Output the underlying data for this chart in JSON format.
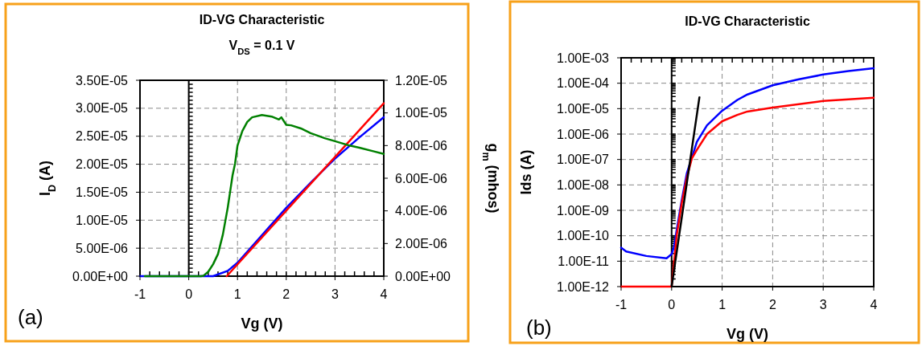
{
  "chart_data": [
    {
      "type": "line",
      "title": "ID-VG Characteristic",
      "subtitle": "V$_{DS}$ = 0.1 V",
      "xlabel": "Vg (V)",
      "ylabel": "I$_{D}$ (A)",
      "y2label": "g$_{m}$ (mhos)",
      "annotations": [
        "(a)"
      ],
      "grid": true,
      "xlim": [
        -1,
        4
      ],
      "xticks": [
        -1,
        0,
        1,
        2,
        3,
        4
      ],
      "ylim": [
        0,
        3.5e-05
      ],
      "yticks": [
        {
          "value": 0,
          "label": "0.00E+00"
        },
        {
          "value": 5e-06,
          "label": "5.00E-06"
        },
        {
          "value": 1e-05,
          "label": "1.00E-05"
        },
        {
          "value": 1.5e-05,
          "label": "1.50E-05"
        },
        {
          "value": 2e-05,
          "label": "2.00E-05"
        },
        {
          "value": 2.5e-05,
          "label": "2.50E-05"
        },
        {
          "value": 3e-05,
          "label": "3.00E-05"
        },
        {
          "value": 3.5e-05,
          "label": "3.50E-05"
        }
      ],
      "y2lim": [
        0,
        1.2e-05
      ],
      "y2ticks": [
        {
          "value": 0,
          "label": "0.00E+00"
        },
        {
          "value": 2e-06,
          "label": "2.00E-06"
        },
        {
          "value": 4e-06,
          "label": "4.00E-06"
        },
        {
          "value": 6e-06,
          "label": "6.00E-06"
        },
        {
          "value": 8e-06,
          "label": "8.00E-06"
        },
        {
          "value": 1e-05,
          "label": "1.00E-05"
        },
        {
          "value": 1.2e-05,
          "label": "1.20E-05"
        }
      ],
      "series": [
        {
          "color": "#0000ff",
          "x": [
            -1,
            0,
            0.5,
            0.8,
            1,
            1.5,
            2,
            2.5,
            3,
            3.5,
            4
          ],
          "values": [
            0,
            0,
            0,
            9.5e-07,
            2.4e-06,
            7.3e-06,
            1.22e-05,
            1.67e-05,
            2.1e-05,
            2.48e-05,
            2.84e-05
          ]
        },
        {
          "color": "#ff0000",
          "x": [
            0.78,
            4
          ],
          "values": [
            0,
            3.09e-05
          ]
        },
        {
          "color": "#008000",
          "axis": "y2",
          "x": [
            -0.9,
            0,
            0.25,
            0.3,
            0.4,
            0.5,
            0.6,
            0.7,
            0.8,
            0.9,
            0.95,
            1,
            1.1,
            1.2,
            1.3,
            1.5,
            1.7,
            1.85,
            1.9,
            2,
            2.1,
            2.3,
            2.5,
            2.8,
            3,
            3.3,
            3.5,
            3.8,
            4
          ],
          "values": [
            0,
            0,
            0,
            2e-08,
            2.7e-07,
            7.3e-07,
            1.36e-06,
            2.55e-06,
            4.2e-06,
            6.2e-06,
            6.9e-06,
            8e-06,
            8.9e-06,
            9.45e-06,
            9.73e-06,
            9.87e-06,
            9.78e-06,
            9.6e-06,
            9.73e-06,
            9.27e-06,
            9.24e-06,
            9.05e-06,
            8.76e-06,
            8.44e-06,
            8.27e-06,
            8e-06,
            7.87e-06,
            7.64e-06,
            7.49e-06
          ]
        }
      ]
    },
    {
      "type": "line",
      "title": "ID-VG Characteristic",
      "xlabel": "Vg (V)",
      "ylabel": "Ids (A)",
      "annotations": [
        "(b)"
      ],
      "grid": true,
      "log": "y",
      "xlim": [
        -1,
        4
      ],
      "xticks": [
        -1,
        0,
        1,
        2,
        3,
        4
      ],
      "ylim": [
        1e-12,
        0.001
      ],
      "yticks": [
        {
          "value": 1e-12,
          "label": "1.00E-12"
        },
        {
          "value": 1e-11,
          "label": "1.00E-11"
        },
        {
          "value": 1e-10,
          "label": "1.00E-10"
        },
        {
          "value": 1e-09,
          "label": "1.00E-09"
        },
        {
          "value": 1e-08,
          "label": "1.00E-08"
        },
        {
          "value": 1e-07,
          "label": "1.00E-07"
        },
        {
          "value": 1e-06,
          "label": "1.00E-06"
        },
        {
          "value": 1e-05,
          "label": "1.00E-05"
        },
        {
          "value": 0.0001,
          "label": "1.00E-04"
        },
        {
          "value": 0.001,
          "label": "1.00E-03"
        }
      ],
      "series": [
        {
          "color": "#0000ff",
          "x": [
            -1,
            -0.9,
            -0.5,
            -0.1,
            0,
            0.05,
            0.1,
            0.2,
            0.3,
            0.5,
            0.7,
            1,
            1.3,
            1.5,
            2,
            2.5,
            3,
            3.5,
            4
          ],
          "values": [
            3.4e-11,
            2.4e-11,
            1.6e-11,
            1.3e-11,
            1.9e-11,
            3.9e-11,
            1.7e-10,
            2.5e-09,
            2.8e-08,
            5e-07,
            2.2e-06,
            8.3e-06,
            2.2e-05,
            3.6e-05,
            8.3e-05,
            0.00014,
            0.00022,
            0.0003,
            0.00039
          ]
        },
        {
          "color": "#ff0000",
          "x": [
            -1,
            0,
            0.1,
            0.2,
            0.3,
            0.4,
            0.5,
            0.7,
            1,
            1.3,
            1.5,
            2,
            3,
            4
          ],
          "values": [
            1e-12,
            1e-12,
            1e-10,
            1.9e-09,
            1.9e-08,
            1.1e-07,
            2.4e-07,
            1e-06,
            3.2e-06,
            5.7e-06,
            7.7e-06,
            1.1e-05,
            2e-05,
            2.7e-05
          ]
        },
        {
          "color": "#000000",
          "x": [
            0,
            0.55
          ],
          "values": [
            1e-12,
            2.8e-05
          ]
        }
      ]
    }
  ]
}
